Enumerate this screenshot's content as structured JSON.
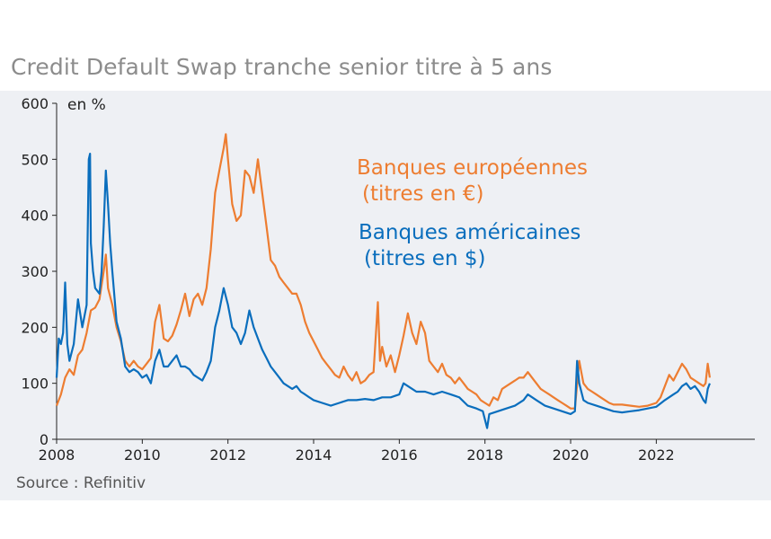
{
  "title": "Credit Default Swap tranche senior titre à 5 ans",
  "source": "Source : Refinitiv",
  "chart_data": {
    "type": "line",
    "unit_label": "en %",
    "ylim": [
      0,
      600
    ],
    "yticks": [
      0,
      100,
      200,
      300,
      400,
      500,
      600
    ],
    "xlim": [
      2008,
      2024.3
    ],
    "xticks": [
      2008,
      2010,
      2012,
      2014,
      2016,
      2018,
      2020,
      2022
    ],
    "grid": false,
    "series": [
      {
        "name": "Banques européennes",
        "name_line2": "(titres en €)",
        "color": "#ed7d31",
        "points": [
          [
            2008.0,
            60
          ],
          [
            2008.1,
            80
          ],
          [
            2008.2,
            110
          ],
          [
            2008.3,
            125
          ],
          [
            2008.4,
            115
          ],
          [
            2008.5,
            150
          ],
          [
            2008.6,
            160
          ],
          [
            2008.7,
            190
          ],
          [
            2008.8,
            230
          ],
          [
            2008.9,
            235
          ],
          [
            2009.0,
            250
          ],
          [
            2009.1,
            300
          ],
          [
            2009.15,
            330
          ],
          [
            2009.2,
            270
          ],
          [
            2009.3,
            240
          ],
          [
            2009.4,
            200
          ],
          [
            2009.5,
            175
          ],
          [
            2009.6,
            140
          ],
          [
            2009.7,
            130
          ],
          [
            2009.8,
            140
          ],
          [
            2009.9,
            130
          ],
          [
            2010.0,
            125
          ],
          [
            2010.1,
            135
          ],
          [
            2010.2,
            145
          ],
          [
            2010.3,
            210
          ],
          [
            2010.4,
            240
          ],
          [
            2010.5,
            180
          ],
          [
            2010.6,
            175
          ],
          [
            2010.7,
            185
          ],
          [
            2010.8,
            205
          ],
          [
            2010.9,
            230
          ],
          [
            2011.0,
            260
          ],
          [
            2011.1,
            220
          ],
          [
            2011.2,
            250
          ],
          [
            2011.3,
            260
          ],
          [
            2011.4,
            240
          ],
          [
            2011.5,
            270
          ],
          [
            2011.6,
            340
          ],
          [
            2011.7,
            440
          ],
          [
            2011.8,
            480
          ],
          [
            2011.9,
            520
          ],
          [
            2011.95,
            545
          ],
          [
            2012.0,
            500
          ],
          [
            2012.1,
            420
          ],
          [
            2012.2,
            390
          ],
          [
            2012.3,
            400
          ],
          [
            2012.4,
            480
          ],
          [
            2012.5,
            470
          ],
          [
            2012.6,
            440
          ],
          [
            2012.7,
            500
          ],
          [
            2012.8,
            440
          ],
          [
            2012.9,
            380
          ],
          [
            2013.0,
            320
          ],
          [
            2013.1,
            310
          ],
          [
            2013.2,
            290
          ],
          [
            2013.3,
            280
          ],
          [
            2013.4,
            270
          ],
          [
            2013.5,
            260
          ],
          [
            2013.6,
            260
          ],
          [
            2013.7,
            240
          ],
          [
            2013.8,
            210
          ],
          [
            2013.9,
            190
          ],
          [
            2014.0,
            175
          ],
          [
            2014.1,
            160
          ],
          [
            2014.2,
            145
          ],
          [
            2014.3,
            135
          ],
          [
            2014.4,
            125
          ],
          [
            2014.5,
            115
          ],
          [
            2014.6,
            110
          ],
          [
            2014.7,
            130
          ],
          [
            2014.8,
            115
          ],
          [
            2014.9,
            105
          ],
          [
            2015.0,
            120
          ],
          [
            2015.1,
            100
          ],
          [
            2015.2,
            105
          ],
          [
            2015.3,
            115
          ],
          [
            2015.4,
            120
          ],
          [
            2015.5,
            245
          ],
          [
            2015.55,
            140
          ],
          [
            2015.6,
            165
          ],
          [
            2015.7,
            130
          ],
          [
            2015.8,
            150
          ],
          [
            2015.9,
            120
          ],
          [
            2016.0,
            150
          ],
          [
            2016.1,
            185
          ],
          [
            2016.2,
            225
          ],
          [
            2016.3,
            190
          ],
          [
            2016.4,
            170
          ],
          [
            2016.5,
            210
          ],
          [
            2016.6,
            190
          ],
          [
            2016.7,
            140
          ],
          [
            2016.8,
            130
          ],
          [
            2016.9,
            120
          ],
          [
            2017.0,
            135
          ],
          [
            2017.1,
            115
          ],
          [
            2017.2,
            110
          ],
          [
            2017.3,
            100
          ],
          [
            2017.4,
            110
          ],
          [
            2017.5,
            100
          ],
          [
            2017.6,
            90
          ],
          [
            2017.7,
            85
          ],
          [
            2017.8,
            80
          ],
          [
            2017.9,
            70
          ],
          [
            2018.0,
            65
          ],
          [
            2018.1,
            60
          ],
          [
            2018.2,
            75
          ],
          [
            2018.3,
            70
          ],
          [
            2018.4,
            90
          ],
          [
            2018.5,
            95
          ],
          [
            2018.6,
            100
          ],
          [
            2018.7,
            105
          ],
          [
            2018.8,
            110
          ],
          [
            2018.9,
            110
          ],
          [
            2019.0,
            120
          ],
          [
            2019.1,
            110
          ],
          [
            2019.2,
            100
          ],
          [
            2019.3,
            90
          ],
          [
            2019.4,
            85
          ],
          [
            2019.5,
            80
          ],
          [
            2019.6,
            75
          ],
          [
            2019.7,
            70
          ],
          [
            2019.8,
            65
          ],
          [
            2019.9,
            60
          ],
          [
            2020.0,
            55
          ],
          [
            2020.1,
            55
          ],
          [
            2020.2,
            140
          ],
          [
            2020.25,
            120
          ],
          [
            2020.3,
            100
          ],
          [
            2020.4,
            90
          ],
          [
            2020.5,
            85
          ],
          [
            2020.6,
            80
          ],
          [
            2020.7,
            75
          ],
          [
            2020.8,
            70
          ],
          [
            2020.9,
            65
          ],
          [
            2021.0,
            62
          ],
          [
            2021.2,
            62
          ],
          [
            2021.4,
            60
          ],
          [
            2021.6,
            58
          ],
          [
            2021.8,
            60
          ],
          [
            2022.0,
            65
          ],
          [
            2022.1,
            75
          ],
          [
            2022.2,
            95
          ],
          [
            2022.3,
            115
          ],
          [
            2022.4,
            105
          ],
          [
            2022.5,
            120
          ],
          [
            2022.6,
            135
          ],
          [
            2022.7,
            125
          ],
          [
            2022.8,
            110
          ],
          [
            2022.9,
            105
          ],
          [
            2023.0,
            100
          ],
          [
            2023.1,
            95
          ],
          [
            2023.15,
            100
          ],
          [
            2023.2,
            135
          ],
          [
            2023.25,
            110
          ]
        ]
      },
      {
        "name": "Banques américaines",
        "name_line2": "(titres en $)",
        "color": "#0a6ebd",
        "points": [
          [
            2008.0,
            110
          ],
          [
            2008.05,
            180
          ],
          [
            2008.1,
            170
          ],
          [
            2008.15,
            190
          ],
          [
            2008.2,
            280
          ],
          [
            2008.25,
            170
          ],
          [
            2008.3,
            140
          ],
          [
            2008.4,
            170
          ],
          [
            2008.5,
            250
          ],
          [
            2008.6,
            200
          ],
          [
            2008.7,
            240
          ],
          [
            2008.75,
            500
          ],
          [
            2008.78,
            510
          ],
          [
            2008.8,
            350
          ],
          [
            2008.85,
            300
          ],
          [
            2008.9,
            270
          ],
          [
            2009.0,
            260
          ],
          [
            2009.05,
            300
          ],
          [
            2009.1,
            380
          ],
          [
            2009.15,
            480
          ],
          [
            2009.2,
            420
          ],
          [
            2009.25,
            350
          ],
          [
            2009.3,
            300
          ],
          [
            2009.4,
            210
          ],
          [
            2009.5,
            180
          ],
          [
            2009.6,
            130
          ],
          [
            2009.7,
            120
          ],
          [
            2009.8,
            125
          ],
          [
            2009.9,
            120
          ],
          [
            2010.0,
            110
          ],
          [
            2010.1,
            115
          ],
          [
            2010.2,
            100
          ],
          [
            2010.3,
            140
          ],
          [
            2010.4,
            160
          ],
          [
            2010.5,
            130
          ],
          [
            2010.6,
            130
          ],
          [
            2010.7,
            140
          ],
          [
            2010.8,
            150
          ],
          [
            2010.9,
            130
          ],
          [
            2011.0,
            130
          ],
          [
            2011.1,
            125
          ],
          [
            2011.2,
            115
          ],
          [
            2011.3,
            110
          ],
          [
            2011.4,
            105
          ],
          [
            2011.5,
            120
          ],
          [
            2011.6,
            140
          ],
          [
            2011.7,
            200
          ],
          [
            2011.8,
            230
          ],
          [
            2011.9,
            270
          ],
          [
            2012.0,
            240
          ],
          [
            2012.1,
            200
          ],
          [
            2012.2,
            190
          ],
          [
            2012.3,
            170
          ],
          [
            2012.4,
            190
          ],
          [
            2012.5,
            230
          ],
          [
            2012.6,
            200
          ],
          [
            2012.7,
            180
          ],
          [
            2012.8,
            160
          ],
          [
            2012.9,
            145
          ],
          [
            2013.0,
            130
          ],
          [
            2013.1,
            120
          ],
          [
            2013.2,
            110
          ],
          [
            2013.3,
            100
          ],
          [
            2013.4,
            95
          ],
          [
            2013.5,
            90
          ],
          [
            2013.6,
            95
          ],
          [
            2013.7,
            85
          ],
          [
            2013.8,
            80
          ],
          [
            2013.9,
            75
          ],
          [
            2014.0,
            70
          ],
          [
            2014.2,
            65
          ],
          [
            2014.4,
            60
          ],
          [
            2014.6,
            65
          ],
          [
            2014.8,
            70
          ],
          [
            2015.0,
            70
          ],
          [
            2015.2,
            72
          ],
          [
            2015.4,
            70
          ],
          [
            2015.6,
            75
          ],
          [
            2015.8,
            75
          ],
          [
            2016.0,
            80
          ],
          [
            2016.1,
            100
          ],
          [
            2016.2,
            95
          ],
          [
            2016.3,
            90
          ],
          [
            2016.4,
            85
          ],
          [
            2016.6,
            85
          ],
          [
            2016.8,
            80
          ],
          [
            2017.0,
            85
          ],
          [
            2017.2,
            80
          ],
          [
            2017.4,
            75
          ],
          [
            2017.6,
            60
          ],
          [
            2017.8,
            55
          ],
          [
            2017.95,
            50
          ],
          [
            2018.0,
            35
          ],
          [
            2018.05,
            20
          ],
          [
            2018.1,
            45
          ],
          [
            2018.3,
            50
          ],
          [
            2018.5,
            55
          ],
          [
            2018.7,
            60
          ],
          [
            2018.9,
            70
          ],
          [
            2019.0,
            80
          ],
          [
            2019.2,
            70
          ],
          [
            2019.4,
            60
          ],
          [
            2019.6,
            55
          ],
          [
            2019.8,
            50
          ],
          [
            2020.0,
            45
          ],
          [
            2020.1,
            50
          ],
          [
            2020.15,
            140
          ],
          [
            2020.2,
            100
          ],
          [
            2020.3,
            70
          ],
          [
            2020.4,
            65
          ],
          [
            2020.6,
            60
          ],
          [
            2020.8,
            55
          ],
          [
            2021.0,
            50
          ],
          [
            2021.2,
            48
          ],
          [
            2021.4,
            50
          ],
          [
            2021.6,
            52
          ],
          [
            2021.8,
            55
          ],
          [
            2022.0,
            58
          ],
          [
            2022.2,
            70
          ],
          [
            2022.4,
            80
          ],
          [
            2022.5,
            85
          ],
          [
            2022.6,
            95
          ],
          [
            2022.7,
            100
          ],
          [
            2022.8,
            90
          ],
          [
            2022.9,
            95
          ],
          [
            2023.0,
            85
          ],
          [
            2023.1,
            70
          ],
          [
            2023.15,
            65
          ],
          [
            2023.2,
            90
          ],
          [
            2023.25,
            100
          ]
        ]
      }
    ]
  }
}
